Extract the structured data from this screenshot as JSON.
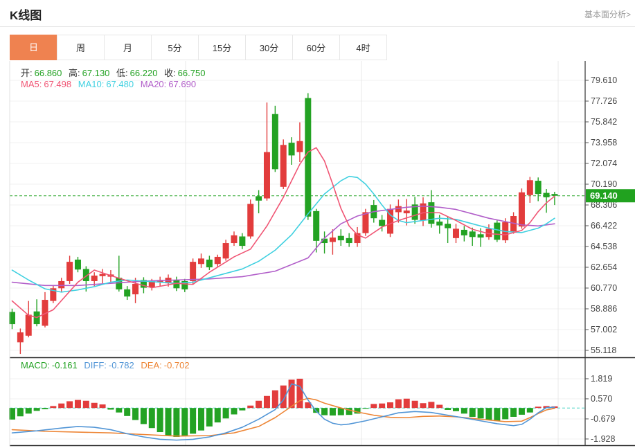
{
  "header": {
    "title": "K线图",
    "link": "基本面分析>"
  },
  "tabs": {
    "items": [
      {
        "label": "日",
        "active": true
      },
      {
        "label": "周",
        "active": false
      },
      {
        "label": "月",
        "active": false
      },
      {
        "label": "5分",
        "active": false
      },
      {
        "label": "15分",
        "active": false
      },
      {
        "label": "30分",
        "active": false
      },
      {
        "label": "60分",
        "active": false
      },
      {
        "label": "4时",
        "active": false
      }
    ]
  },
  "ohlc_readout": {
    "items": [
      {
        "label": "开:",
        "value": "66.860"
      },
      {
        "label": "高:",
        "value": "67.130"
      },
      {
        "label": "低:",
        "value": "66.220"
      },
      {
        "label": "收:",
        "value": "66.750"
      }
    ]
  },
  "ma_readout": {
    "items": [
      {
        "label": "MA5:",
        "value": "67.498"
      },
      {
        "label": "MA10:",
        "value": "67.480"
      },
      {
        "label": "MA20:",
        "value": "67.690"
      }
    ]
  },
  "macd_readout": {
    "items": [
      {
        "label": "MACD:",
        "value": "-0.161"
      },
      {
        "label": "DIFF:",
        "value": "-0.782"
      },
      {
        "label": "DEA:",
        "value": "-0.702"
      }
    ]
  },
  "axis": {
    "price_ticks": [
      "79.610",
      "77.726",
      "75.842",
      "73.958",
      "72.074",
      "70.190",
      "68.306",
      "66.422",
      "64.538",
      "62.654",
      "60.770",
      "58.886",
      "57.002",
      "55.118"
    ],
    "macd_ticks": [
      "1.819",
      "0.570",
      "-0.679",
      "-1.928"
    ],
    "current_price": "69.140"
  },
  "colors": {
    "up_red": "#e23c3c",
    "down_green": "#23a223",
    "ohlc_value": "#23a223",
    "ohlc_label": "#333333",
    "ma5": "#f05574",
    "ma10": "#3fd0e0",
    "ma20": "#b15ec9",
    "macd_label": "#23a223",
    "diff_blue": "#5195d6",
    "dea_orange": "#ed8535",
    "tab_orange": "#ef8250",
    "axis_text": "#444444",
    "grid": "#f0f0f0",
    "grid_vertical": "#e9e9e9",
    "dark_border": "#2b2b2b",
    "price_line": "#2aa52a",
    "zero_line": "#3fd0c0",
    "badge_bg": "#21a21f",
    "badge_text": "#ffffff"
  },
  "chart_data": {
    "type": "candlestick+macd",
    "price_axis": {
      "top_value": 79.61,
      "bottom_value": 55.118,
      "grid_step": 1.884
    },
    "current_price": 69.14,
    "candles_ohlc": [
      [
        58.6,
        58.9,
        57.05,
        57.5
      ],
      [
        55.85,
        57.1,
        54.8,
        56.75
      ],
      [
        56.45,
        59.6,
        56.3,
        58.35
      ],
      [
        58.65,
        59.75,
        57.3,
        57.5
      ],
      [
        57.35,
        60.4,
        57.2,
        59.7
      ],
      [
        59.6,
        61.0,
        59.4,
        60.75
      ],
      [
        60.75,
        61.7,
        60.45,
        61.4
      ],
      [
        61.4,
        63.7,
        61.15,
        63.15
      ],
      [
        63.35,
        63.6,
        62.2,
        62.45
      ],
      [
        62.5,
        62.75,
        60.45,
        61.4
      ],
      [
        61.4,
        62.2,
        60.95,
        61.9
      ],
      [
        61.85,
        62.5,
        61.2,
        62.05
      ],
      [
        61.8,
        62.4,
        61.3,
        62.0
      ],
      [
        61.7,
        63.7,
        60.45,
        60.65
      ],
      [
        60.65,
        60.95,
        59.7,
        60.0
      ],
      [
        60.2,
        61.7,
        59.4,
        61.15
      ],
      [
        61.5,
        61.75,
        60.3,
        60.8
      ],
      [
        60.85,
        61.6,
        60.55,
        61.4
      ],
      [
        61.3,
        61.8,
        60.9,
        61.5
      ],
      [
        61.2,
        62.0,
        60.9,
        61.7
      ],
      [
        61.5,
        61.8,
        60.5,
        60.75
      ],
      [
        61.4,
        61.6,
        60.4,
        60.65
      ],
      [
        61.4,
        63.45,
        61.15,
        63.15
      ],
      [
        62.95,
        63.9,
        62.6,
        63.45
      ],
      [
        63.35,
        63.7,
        62.4,
        62.65
      ],
      [
        62.95,
        63.8,
        62.7,
        63.6
      ],
      [
        63.45,
        65.15,
        63.25,
        64.85
      ],
      [
        64.85,
        65.9,
        64.6,
        65.55
      ],
      [
        65.45,
        65.75,
        64.3,
        64.6
      ],
      [
        65.45,
        68.8,
        65.25,
        68.4
      ],
      [
        69.1,
        69.65,
        67.55,
        68.7
      ],
      [
        68.9,
        77.6,
        68.7,
        73.1
      ],
      [
        76.55,
        77.3,
        71.3,
        71.55
      ],
      [
        69.95,
        74.25,
        69.75,
        73.75
      ],
      [
        73.95,
        74.45,
        71.95,
        72.8
      ],
      [
        73.1,
        75.8,
        72.2,
        74.1
      ],
      [
        78.0,
        78.45,
        66.95,
        67.25
      ],
      [
        67.75,
        67.95,
        64.0,
        65.05
      ],
      [
        65.25,
        65.9,
        63.9,
        64.85
      ],
      [
        64.95,
        66.1,
        63.8,
        65.35
      ],
      [
        65.5,
        66.1,
        64.6,
        65.1
      ],
      [
        65.3,
        65.75,
        64.5,
        64.85
      ],
      [
        64.85,
        66.3,
        64.5,
        65.75
      ],
      [
        65.75,
        67.95,
        65.5,
        67.65
      ],
      [
        68.3,
        68.75,
        66.7,
        67.1
      ],
      [
        66.95,
        67.4,
        65.9,
        66.4
      ],
      [
        65.7,
        68.35,
        65.4,
        67.95
      ],
      [
        67.65,
        68.8,
        66.7,
        68.2
      ],
      [
        67.55,
        68.85,
        66.45,
        67.8
      ],
      [
        68.35,
        69.05,
        66.6,
        66.95
      ],
      [
        66.9,
        69.0,
        66.4,
        68.45
      ],
      [
        68.55,
        69.65,
        66.25,
        66.6
      ],
      [
        66.8,
        67.4,
        65.7,
        66.45
      ],
      [
        66.6,
        67.2,
        64.85,
        66.2
      ],
      [
        65.3,
        66.6,
        64.85,
        66.15
      ],
      [
        66.05,
        66.4,
        65.0,
        65.55
      ],
      [
        65.9,
        66.25,
        64.6,
        65.4
      ],
      [
        65.65,
        66.2,
        64.5,
        65.35
      ],
      [
        65.4,
        66.55,
        65.15,
        66.15
      ],
      [
        66.7,
        66.9,
        64.95,
        65.15
      ],
      [
        65.1,
        67.1,
        64.85,
        66.75
      ],
      [
        65.9,
        67.65,
        65.7,
        67.3
      ],
      [
        66.35,
        69.8,
        66.15,
        69.45
      ],
      [
        69.2,
        70.85,
        68.5,
        70.55
      ],
      [
        70.5,
        70.8,
        68.65,
        69.3
      ],
      [
        69.4,
        69.75,
        67.6,
        69.0
      ],
      [
        69.3,
        69.5,
        68.3,
        69.14
      ]
    ],
    "ma5_points": [
      [
        0,
        59.6
      ],
      [
        2,
        58.3
      ],
      [
        3,
        58.1
      ],
      [
        5,
        58.8
      ],
      [
        8,
        61.3
      ],
      [
        10,
        62.4
      ],
      [
        12,
        61.9
      ],
      [
        15,
        61.2
      ],
      [
        17,
        60.8
      ],
      [
        20,
        61.2
      ],
      [
        22,
        61.1
      ],
      [
        24,
        62.2
      ],
      [
        27,
        63.6
      ],
      [
        29,
        64.3
      ],
      [
        31,
        66.4
      ],
      [
        33,
        69.0
      ],
      [
        35,
        72.0
      ],
      [
        36,
        73.1
      ],
      [
        37,
        73.5
      ],
      [
        38,
        72.3
      ],
      [
        39,
        70.2
      ],
      [
        40,
        68.0
      ],
      [
        41,
        66.4
      ],
      [
        42,
        65.6
      ],
      [
        43,
        65.3
      ],
      [
        45,
        66.3
      ],
      [
        47,
        66.9
      ],
      [
        50,
        67.6
      ],
      [
        52,
        67.6
      ],
      [
        54,
        66.9
      ],
      [
        56,
        66.1
      ],
      [
        58,
        65.7
      ],
      [
        60,
        65.6
      ],
      [
        62,
        66.0
      ],
      [
        63,
        66.7
      ],
      [
        64,
        67.7
      ],
      [
        65,
        68.5
      ],
      [
        66,
        69.1
      ]
    ],
    "ma10_points": [
      [
        0,
        62.4
      ],
      [
        2,
        61.5
      ],
      [
        4,
        60.7
      ],
      [
        6,
        60.4
      ],
      [
        8,
        60.6
      ],
      [
        10,
        60.9
      ],
      [
        12,
        61.3
      ],
      [
        14,
        61.5
      ],
      [
        16,
        61.4
      ],
      [
        18,
        61.3
      ],
      [
        20,
        61.2
      ],
      [
        22,
        61.3
      ],
      [
        24,
        61.7
      ],
      [
        26,
        62.1
      ],
      [
        28,
        62.5
      ],
      [
        30,
        63.2
      ],
      [
        32,
        64.2
      ],
      [
        34,
        65.6
      ],
      [
        36,
        67.5
      ],
      [
        38,
        69.3
      ],
      [
        40,
        70.5
      ],
      [
        41,
        70.9
      ],
      [
        42,
        70.8
      ],
      [
        43,
        70.2
      ],
      [
        44,
        69.3
      ],
      [
        45,
        68.3
      ],
      [
        46,
        67.4
      ],
      [
        47,
        66.9
      ],
      [
        48,
        66.7
      ],
      [
        50,
        66.9
      ],
      [
        52,
        67.1
      ],
      [
        54,
        67.0
      ],
      [
        56,
        66.6
      ],
      [
        58,
        66.2
      ],
      [
        60,
        65.9
      ],
      [
        62,
        65.8
      ],
      [
        64,
        66.2
      ],
      [
        65,
        66.6
      ],
      [
        66,
        67.1
      ]
    ],
    "ma20_points": [
      [
        0,
        61.3
      ],
      [
        4,
        61.0
      ],
      [
        8,
        61.0
      ],
      [
        12,
        61.2
      ],
      [
        16,
        61.4
      ],
      [
        20,
        61.5
      ],
      [
        24,
        61.6
      ],
      [
        28,
        61.8
      ],
      [
        32,
        62.3
      ],
      [
        36,
        63.5
      ],
      [
        38,
        65.3
      ],
      [
        40,
        66.6
      ],
      [
        42,
        67.3
      ],
      [
        44,
        67.7
      ],
      [
        46,
        67.9
      ],
      [
        48,
        68.1
      ],
      [
        50,
        68.2
      ],
      [
        52,
        68.1
      ],
      [
        54,
        67.9
      ],
      [
        56,
        67.5
      ],
      [
        58,
        67.1
      ],
      [
        60,
        66.8
      ],
      [
        62,
        66.5
      ],
      [
        64,
        66.4
      ],
      [
        66,
        66.6
      ]
    ],
    "macd_axis": {
      "top_value": 1.819,
      "bottom_value": -1.928,
      "grid_step": 1.249
    },
    "macd_histogram": [
      -0.72,
      -0.52,
      -0.35,
      -0.18,
      -0.08,
      0.12,
      0.28,
      0.42,
      0.5,
      0.45,
      0.32,
      0.22,
      -0.1,
      -0.28,
      -0.5,
      -0.75,
      -1.0,
      -1.25,
      -1.5,
      -1.7,
      -1.8,
      -1.75,
      -1.6,
      -1.4,
      -1.15,
      -0.9,
      -0.65,
      -0.4,
      -0.15,
      0.15,
      0.45,
      0.75,
      1.1,
      1.4,
      1.76,
      1.82,
      0.35,
      -0.3,
      -0.45,
      -0.47,
      -0.45,
      -0.43,
      -0.35,
      -0.05,
      0.25,
      0.28,
      0.35,
      0.54,
      0.58,
      0.45,
      0.3,
      0.38,
      0.2,
      -0.12,
      -0.2,
      -0.35,
      -0.55,
      -0.65,
      -0.75,
      -0.8,
      -0.7,
      -0.55,
      -0.42,
      -0.28,
      0.08,
      0.12,
      0.1
    ],
    "diff_points": [
      [
        0,
        -1.55
      ],
      [
        3,
        -1.42
      ],
      [
        6,
        -1.25
      ],
      [
        8,
        -1.15
      ],
      [
        10,
        -1.2
      ],
      [
        12,
        -1.35
      ],
      [
        14,
        -1.6
      ],
      [
        16,
        -1.8
      ],
      [
        18,
        -1.95
      ],
      [
        20,
        -2.0
      ],
      [
        22,
        -1.95
      ],
      [
        24,
        -1.8
      ],
      [
        26,
        -1.55
      ],
      [
        28,
        -1.2
      ],
      [
        30,
        -0.7
      ],
      [
        32,
        -0.1
      ],
      [
        33,
        0.5
      ],
      [
        34,
        1.5
      ],
      [
        35,
        1.35
      ],
      [
        36,
        0.5
      ],
      [
        37,
        -0.2
      ],
      [
        38,
        -0.7
      ],
      [
        39,
        -0.95
      ],
      [
        40,
        -1.05
      ],
      [
        41,
        -1.0
      ],
      [
        43,
        -0.8
      ],
      [
        45,
        -0.55
      ],
      [
        47,
        -0.3
      ],
      [
        49,
        -0.22
      ],
      [
        51,
        -0.28
      ],
      [
        53,
        -0.45
      ],
      [
        55,
        -0.62
      ],
      [
        57,
        -0.8
      ],
      [
        59,
        -0.98
      ],
      [
        61,
        -1.1
      ],
      [
        62,
        -1.02
      ],
      [
        63,
        -0.7
      ],
      [
        64,
        -0.3
      ],
      [
        65,
        0.02
      ],
      [
        66,
        0.05
      ]
    ],
    "dea_points": [
      [
        0,
        -1.35
      ],
      [
        4,
        -1.45
      ],
      [
        8,
        -1.5
      ],
      [
        12,
        -1.55
      ],
      [
        16,
        -1.65
      ],
      [
        20,
        -1.75
      ],
      [
        24,
        -1.72
      ],
      [
        27,
        -1.55
      ],
      [
        30,
        -1.15
      ],
      [
        32,
        -0.6
      ],
      [
        34,
        0.1
      ],
      [
        35,
        0.45
      ],
      [
        36,
        0.6
      ],
      [
        37,
        0.5
      ],
      [
        38,
        0.3
      ],
      [
        40,
        0.0
      ],
      [
        42,
        -0.25
      ],
      [
        44,
        -0.45
      ],
      [
        46,
        -0.58
      ],
      [
        48,
        -0.6
      ],
      [
        50,
        -0.52
      ],
      [
        52,
        -0.5
      ],
      [
        54,
        -0.55
      ],
      [
        56,
        -0.65
      ],
      [
        58,
        -0.75
      ],
      [
        60,
        -0.85
      ],
      [
        62,
        -0.82
      ],
      [
        63,
        -0.6
      ],
      [
        64,
        -0.35
      ],
      [
        65,
        -0.12
      ],
      [
        66,
        -0.02
      ]
    ],
    "vgrid_x": [
      268,
      522,
      806
    ]
  }
}
